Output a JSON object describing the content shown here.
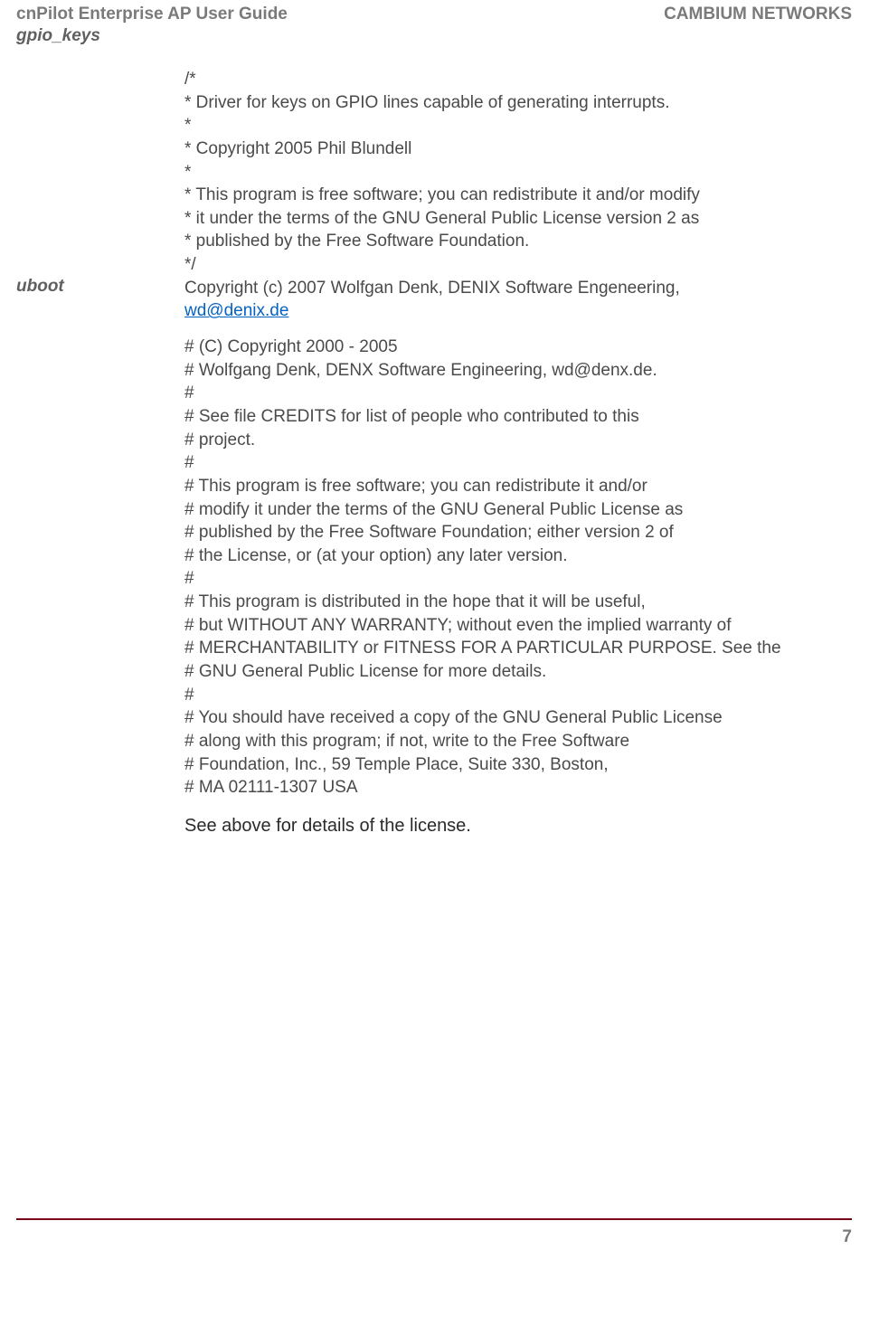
{
  "header": {
    "left": "cnPilot Enterprise AP User Guide",
    "right": "CAMBIUM NETWORKS"
  },
  "rows": [
    {
      "label": "gpio_keys",
      "lines": [
        "/*",
        " * Driver for keys on GPIO lines capable of generating interrupts.",
        " *",
        " * Copyright 2005 Phil Blundell",
        " *",
        " * This program is free software; you can redistribute it and/or  modify",
        " * it under the terms of the GNU General Public License version 2 as",
        " * published by the Free Software Foundation.",
        " */"
      ]
    },
    {
      "label": "uboot",
      "intro_line1": "Copyright (c) 2007 Wolfgan Denk, DENIX Software Engeneering,",
      "email": "wd@denix.de",
      "block2": [
        "# (C) Copyright 2000 - 2005",
        "# Wolfgang Denk, DENX Software Engineering, wd@denx.de.",
        "#",
        "# See file CREDITS for list of people who contributed to this",
        "# project.",
        "#",
        "# This program is free software; you can redistribute it and/or",
        "# modify it under the terms of the GNU General Public License as",
        "# published by the Free Software Foundation; either version 2 of",
        "# the License, or (at your option) any later version.",
        "#",
        "# This program is distributed in the hope that it will be useful,",
        "# but WITHOUT ANY WARRANTY; without even the implied warranty of",
        "# MERCHANTABILITY or FITNESS FOR A PARTICULAR PURPOSE. See the",
        "# GNU General Public License for more details.",
        "#",
        "# You should have received a copy of the GNU General Public License",
        "# along with this program; if not, write to the Free Software",
        "# Foundation, Inc., 59 Temple Place, Suite 330, Boston,",
        "# MA 02111-1307 USA"
      ],
      "see_above": "See above for details of the license."
    }
  ],
  "page_number": "7",
  "colors": {
    "header_text": "#7a7a7a",
    "body_text": "#4a4a4a",
    "link": "#0563c1",
    "rule": "#7a0019",
    "cell_border": "#606060"
  },
  "typography": {
    "header_fontsize": 19,
    "body_fontsize": 19,
    "see_above_fontsize": 20
  }
}
